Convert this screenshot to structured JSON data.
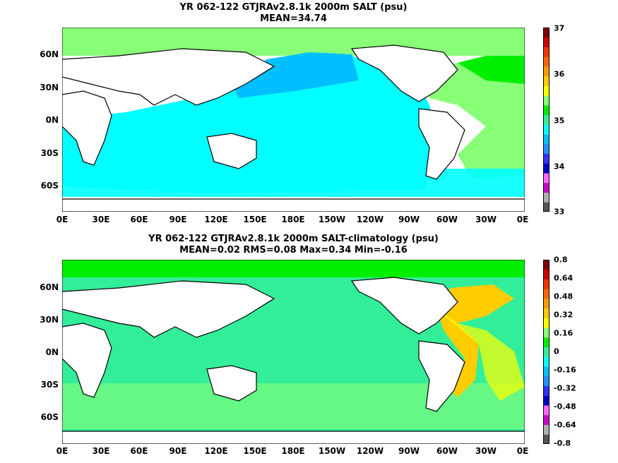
{
  "panels": [
    {
      "title_line1": "YR 062-122 GTJRAv2.8.1k 2000m SALT (psu)",
      "title_line2": "MEAN=34.74",
      "lat_labels": [
        "60N",
        "30N",
        "0N",
        "30S",
        "60S"
      ],
      "lon_labels": [
        "0E",
        "30E",
        "60E",
        "90E",
        "120E",
        "150E",
        "180E",
        "150W",
        "120W",
        "90W",
        "60W",
        "30W",
        "0E"
      ],
      "colorbar_labels": [
        "37",
        "36",
        "35",
        "34",
        "33"
      ],
      "colorbar_colors": [
        "#555555",
        "#b0b0b0",
        "#cc00cc",
        "#ff66ff",
        "#0000cc",
        "#3333ff",
        "#1e90ff",
        "#00bfff",
        "#00ffff",
        "#33ee99",
        "#00ee00",
        "#88ff77",
        "#ffff00",
        "#ffcc00",
        "#ff9900",
        "#ff6600",
        "#ff3300",
        "#cc0000",
        "#800000"
      ],
      "fields": {
        "pacific": "#00ffff",
        "north_pacific": "#00bfff",
        "indian": "#00ffff",
        "atlantic": "#88ff77",
        "north_atlantic": "#00ee00",
        "arctic": "#88ff77"
      }
    },
    {
      "title_line1": "YR 062-122 GTJRAv2.8.1k 2000m SALT-climatology (psu)",
      "title_line2": "MEAN=0.02   RMS=0.08   Max=0.34   Min=-0.16",
      "lat_labels": [
        "60N",
        "30N",
        "0N",
        "30S",
        "60S"
      ],
      "lon_labels": [
        "0E",
        "30E",
        "60E",
        "90E",
        "120E",
        "150E",
        "180E",
        "150W",
        "120W",
        "90W",
        "60W",
        "30W",
        "0E"
      ],
      "colorbar_labels": [
        "0.8",
        "0.64",
        "0.48",
        "0.32",
        "0.16",
        "0",
        "-0.16",
        "-0.32",
        "-0.48",
        "-0.64",
        "-0.8"
      ],
      "colorbar_colors": [
        "#555555",
        "#b0b0b0",
        "#cc00cc",
        "#ff66ff",
        "#0000cc",
        "#3333ff",
        "#1e90ff",
        "#00bfff",
        "#00ffff",
        "#33ee99",
        "#00ee00",
        "#88ff77",
        "#ffff00",
        "#ffcc00",
        "#ff9900",
        "#ff6600",
        "#ff3300",
        "#cc0000",
        "#800000"
      ],
      "fields": {
        "pacific": "#33ee99",
        "north_pacific": "#33ee99",
        "indian": "#33ee99",
        "atlantic": "#ffcc00",
        "north_atlantic": "#ffcc00",
        "arctic": "#00ee00"
      }
    }
  ]
}
